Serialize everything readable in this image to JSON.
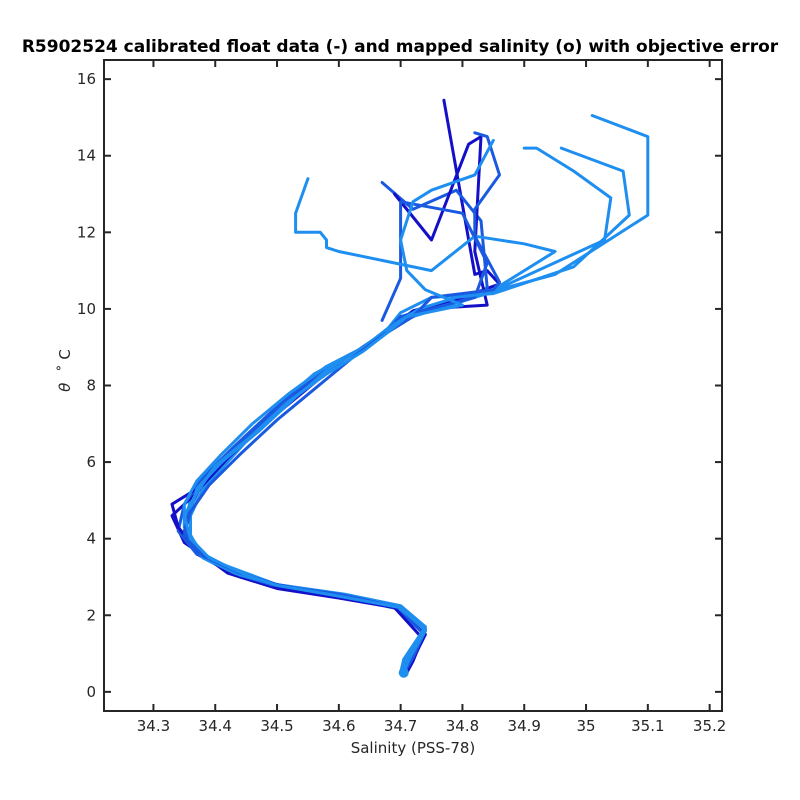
{
  "chart_data": {
    "type": "line",
    "title": "R5902524 calibrated float data (-) and mapped salinity (o) with objective error",
    "xlabel": "Salinity (PSS-78)",
    "ylabel_symbol": "θ",
    "ylabel_unit": "˚ C",
    "xlim": [
      34.22,
      35.22
    ],
    "ylim": [
      -0.5,
      16.5
    ],
    "xticks": [
      34.3,
      34.4,
      34.5,
      34.6,
      34.7,
      34.8,
      34.9,
      35.0,
      35.1,
      35.2
    ],
    "xtick_labels": [
      "34.3",
      "34.4",
      "34.5",
      "34.6",
      "34.7",
      "34.8",
      "34.9",
      "35",
      "35.1",
      "35.2"
    ],
    "yticks": [
      0,
      2,
      4,
      6,
      8,
      10,
      12,
      14,
      16
    ],
    "ytick_labels": [
      "0",
      "2",
      "4",
      "6",
      "8",
      "10",
      "12",
      "14",
      "16"
    ],
    "grid": false,
    "colors": {
      "dark": "#1410c8",
      "mid": "#1a5ae0",
      "light": "#1e8ff0"
    },
    "series": [
      {
        "color": "#1e8ff0",
        "points": [
          [
            34.705,
            0.5
          ],
          [
            34.71,
            0.8
          ],
          [
            34.74,
            1.6
          ],
          [
            34.7,
            2.2
          ],
          [
            34.6,
            2.55
          ],
          [
            34.5,
            2.8
          ],
          [
            34.45,
            3.1
          ],
          [
            34.4,
            3.4
          ],
          [
            34.36,
            3.8
          ],
          [
            34.35,
            4.4
          ],
          [
            34.36,
            5.0
          ],
          [
            34.39,
            5.7
          ],
          [
            34.45,
            6.6
          ],
          [
            34.51,
            7.6
          ],
          [
            34.56,
            8.3
          ],
          [
            34.63,
            8.9
          ],
          [
            34.68,
            9.4
          ],
          [
            34.72,
            9.9
          ],
          [
            34.8,
            10.25
          ],
          [
            34.95,
            10.9
          ],
          [
            35.1,
            12.45
          ],
          [
            35.1,
            14.5
          ],
          [
            35.01,
            15.05
          ]
        ]
      },
      {
        "color": "#1410c8",
        "points": [
          [
            34.705,
            0.5
          ],
          [
            34.72,
            0.85
          ],
          [
            34.74,
            1.5
          ],
          [
            34.7,
            2.2
          ],
          [
            34.6,
            2.5
          ],
          [
            34.5,
            2.78
          ],
          [
            34.45,
            3.05
          ],
          [
            34.39,
            3.45
          ],
          [
            34.35,
            3.9
          ],
          [
            34.33,
            4.6
          ],
          [
            34.37,
            5.2
          ],
          [
            34.41,
            5.9
          ],
          [
            34.46,
            6.7
          ],
          [
            34.52,
            7.6
          ],
          [
            34.57,
            8.3
          ],
          [
            34.63,
            8.9
          ],
          [
            34.68,
            9.45
          ],
          [
            34.72,
            9.95
          ],
          [
            34.8,
            10.3
          ],
          [
            34.86,
            10.65
          ],
          [
            34.84,
            11.0
          ],
          [
            34.82,
            10.9
          ],
          [
            34.77,
            15.45
          ]
        ]
      },
      {
        "color": "#1a5ae0",
        "points": [
          [
            34.702,
            0.45
          ],
          [
            34.71,
            0.9
          ],
          [
            34.735,
            1.55
          ],
          [
            34.69,
            2.25
          ],
          [
            34.58,
            2.6
          ],
          [
            34.48,
            2.85
          ],
          [
            34.42,
            3.2
          ],
          [
            34.37,
            3.6
          ],
          [
            34.34,
            4.2
          ],
          [
            34.35,
            4.9
          ],
          [
            34.38,
            5.6
          ],
          [
            34.43,
            6.4
          ],
          [
            34.49,
            7.3
          ],
          [
            34.55,
            8.1
          ],
          [
            34.62,
            8.8
          ],
          [
            34.67,
            9.35
          ],
          [
            34.71,
            9.85
          ],
          [
            34.8,
            10.2
          ],
          [
            34.84,
            10.55
          ],
          [
            34.83,
            12.3
          ],
          [
            34.79,
            13.1
          ],
          [
            34.72,
            12.6
          ],
          [
            34.67,
            13.3
          ]
        ]
      },
      {
        "color": "#1e8ff0",
        "points": [
          [
            34.705,
            0.55
          ],
          [
            34.715,
            0.95
          ],
          [
            34.74,
            1.65
          ],
          [
            34.7,
            2.15
          ],
          [
            34.6,
            2.5
          ],
          [
            34.5,
            2.75
          ],
          [
            34.44,
            3.0
          ],
          [
            34.38,
            3.5
          ],
          [
            34.36,
            4.0
          ],
          [
            34.36,
            4.6
          ],
          [
            34.38,
            5.3
          ],
          [
            34.42,
            6.0
          ],
          [
            34.47,
            6.9
          ],
          [
            34.53,
            7.7
          ],
          [
            34.58,
            8.4
          ],
          [
            34.64,
            9.0
          ],
          [
            34.68,
            9.5
          ],
          [
            34.7,
            9.9
          ],
          [
            34.75,
            10.3
          ],
          [
            34.85,
            10.4
          ],
          [
            34.98,
            11.1
          ],
          [
            35.07,
            12.45
          ],
          [
            35.06,
            13.6
          ],
          [
            34.96,
            14.2
          ]
        ]
      },
      {
        "color": "#1410c8",
        "points": [
          [
            34.71,
            0.5
          ],
          [
            34.72,
            0.8
          ],
          [
            34.735,
            1.4
          ],
          [
            34.69,
            2.2
          ],
          [
            34.6,
            2.45
          ],
          [
            34.5,
            2.7
          ],
          [
            34.42,
            3.1
          ],
          [
            34.37,
            3.7
          ],
          [
            34.34,
            4.3
          ],
          [
            34.33,
            4.9
          ],
          [
            34.38,
            5.4
          ],
          [
            34.42,
            6.1
          ],
          [
            34.48,
            7.0
          ],
          [
            34.54,
            7.8
          ],
          [
            34.6,
            8.6
          ],
          [
            34.66,
            9.2
          ],
          [
            34.69,
            9.6
          ],
          [
            34.74,
            10.0
          ],
          [
            34.84,
            10.1
          ],
          [
            34.82,
            11.5
          ],
          [
            34.83,
            14.5
          ],
          [
            34.81,
            14.3
          ],
          [
            34.75,
            11.8
          ],
          [
            34.69,
            13.0
          ]
        ]
      },
      {
        "color": "#1e8ff0",
        "points": [
          [
            34.7,
            0.5
          ],
          [
            34.705,
            0.85
          ],
          [
            34.74,
            1.7
          ],
          [
            34.7,
            2.25
          ],
          [
            34.61,
            2.55
          ],
          [
            34.5,
            2.8
          ],
          [
            34.44,
            3.1
          ],
          [
            34.38,
            3.6
          ],
          [
            34.35,
            4.3
          ],
          [
            34.35,
            4.9
          ],
          [
            34.37,
            5.5
          ],
          [
            34.41,
            6.2
          ],
          [
            34.46,
            7.0
          ],
          [
            34.52,
            7.8
          ],
          [
            34.58,
            8.5
          ],
          [
            34.64,
            9.0
          ],
          [
            34.68,
            9.5
          ],
          [
            34.72,
            9.8
          ],
          [
            34.84,
            10.4
          ],
          [
            35.03,
            11.8
          ],
          [
            35.04,
            12.9
          ],
          [
            34.98,
            13.6
          ],
          [
            34.92,
            14.2
          ],
          [
            34.9,
            14.2
          ]
        ]
      },
      {
        "color": "#1a5ae0",
        "points": [
          [
            34.705,
            0.5
          ],
          [
            34.715,
            0.9
          ],
          [
            34.74,
            1.6
          ],
          [
            34.7,
            2.2
          ],
          [
            34.6,
            2.55
          ],
          [
            34.49,
            2.8
          ],
          [
            34.43,
            3.1
          ],
          [
            34.37,
            3.6
          ],
          [
            34.35,
            4.2
          ],
          [
            34.36,
            4.8
          ],
          [
            34.38,
            5.5
          ],
          [
            34.43,
            6.3
          ],
          [
            34.49,
            7.2
          ],
          [
            34.55,
            8.0
          ],
          [
            34.61,
            8.7
          ],
          [
            34.67,
            9.3
          ],
          [
            34.7,
            9.8
          ],
          [
            34.82,
            10.3
          ],
          [
            34.84,
            11.2
          ],
          [
            34.8,
            12.5
          ],
          [
            34.7,
            12.8
          ],
          [
            34.7,
            10.8
          ],
          [
            34.67,
            9.7
          ]
        ]
      },
      {
        "color": "#1e8ff0",
        "points": [
          [
            34.705,
            0.5
          ],
          [
            34.71,
            0.85
          ],
          [
            34.74,
            1.65
          ],
          [
            34.7,
            2.2
          ],
          [
            34.6,
            2.5
          ],
          [
            34.5,
            2.8
          ],
          [
            34.44,
            3.05
          ],
          [
            34.38,
            3.5
          ],
          [
            34.36,
            4.1
          ],
          [
            34.36,
            4.7
          ],
          [
            34.37,
            5.3
          ],
          [
            34.41,
            6.0
          ],
          [
            34.47,
            6.8
          ],
          [
            34.53,
            7.7
          ],
          [
            34.59,
            8.5
          ],
          [
            34.65,
            9.1
          ],
          [
            34.69,
            9.6
          ],
          [
            34.73,
            10.0
          ],
          [
            34.79,
            10.3
          ],
          [
            34.84,
            10.4
          ],
          [
            34.95,
            11.5
          ],
          [
            34.9,
            11.7
          ],
          [
            34.82,
            11.9
          ],
          [
            34.75,
            11.0
          ],
          [
            34.6,
            11.5
          ],
          [
            34.58,
            11.6
          ],
          [
            34.58,
            11.8
          ],
          [
            34.57,
            12.0
          ],
          [
            34.53,
            12.0
          ],
          [
            34.53,
            12.5
          ],
          [
            34.55,
            13.4
          ]
        ]
      },
      {
        "color": "#1a5ae0",
        "points": [
          [
            34.705,
            0.48
          ],
          [
            34.72,
            0.9
          ],
          [
            34.74,
            1.6
          ],
          [
            34.7,
            2.2
          ],
          [
            34.6,
            2.5
          ],
          [
            34.5,
            2.8
          ],
          [
            34.44,
            3.1
          ],
          [
            34.38,
            3.55
          ],
          [
            34.35,
            4.1
          ],
          [
            34.36,
            4.7
          ],
          [
            34.39,
            5.4
          ],
          [
            34.44,
            6.2
          ],
          [
            34.5,
            7.1
          ],
          [
            34.56,
            7.9
          ],
          [
            34.62,
            8.7
          ],
          [
            34.67,
            9.3
          ],
          [
            34.72,
            9.8
          ],
          [
            34.75,
            10.3
          ],
          [
            34.85,
            10.5
          ],
          [
            34.86,
            10.7
          ],
          [
            34.84,
            11.3
          ],
          [
            34.82,
            11.9
          ],
          [
            34.82,
            12.6
          ],
          [
            34.86,
            13.5
          ],
          [
            34.84,
            14.5
          ],
          [
            34.82,
            14.6
          ]
        ]
      },
      {
        "color": "#1e8ff0",
        "points": [
          [
            34.705,
            0.52
          ],
          [
            34.715,
            0.9
          ],
          [
            34.74,
            1.6
          ],
          [
            34.7,
            2.2
          ],
          [
            34.6,
            2.5
          ],
          [
            34.5,
            2.78
          ],
          [
            34.45,
            3.05
          ],
          [
            34.39,
            3.5
          ],
          [
            34.36,
            4.0
          ],
          [
            34.35,
            4.6
          ],
          [
            34.37,
            5.2
          ],
          [
            34.4,
            5.9
          ],
          [
            34.46,
            6.7
          ],
          [
            34.52,
            7.6
          ],
          [
            34.58,
            8.3
          ],
          [
            34.64,
            8.9
          ],
          [
            34.68,
            9.4
          ],
          [
            34.71,
            9.8
          ],
          [
            34.8,
            10.1
          ],
          [
            34.74,
            10.5
          ],
          [
            34.71,
            11.0
          ],
          [
            34.7,
            11.8
          ],
          [
            34.72,
            12.8
          ],
          [
            34.75,
            13.1
          ],
          [
            34.82,
            13.5
          ],
          [
            34.85,
            14.4
          ]
        ]
      }
    ]
  }
}
